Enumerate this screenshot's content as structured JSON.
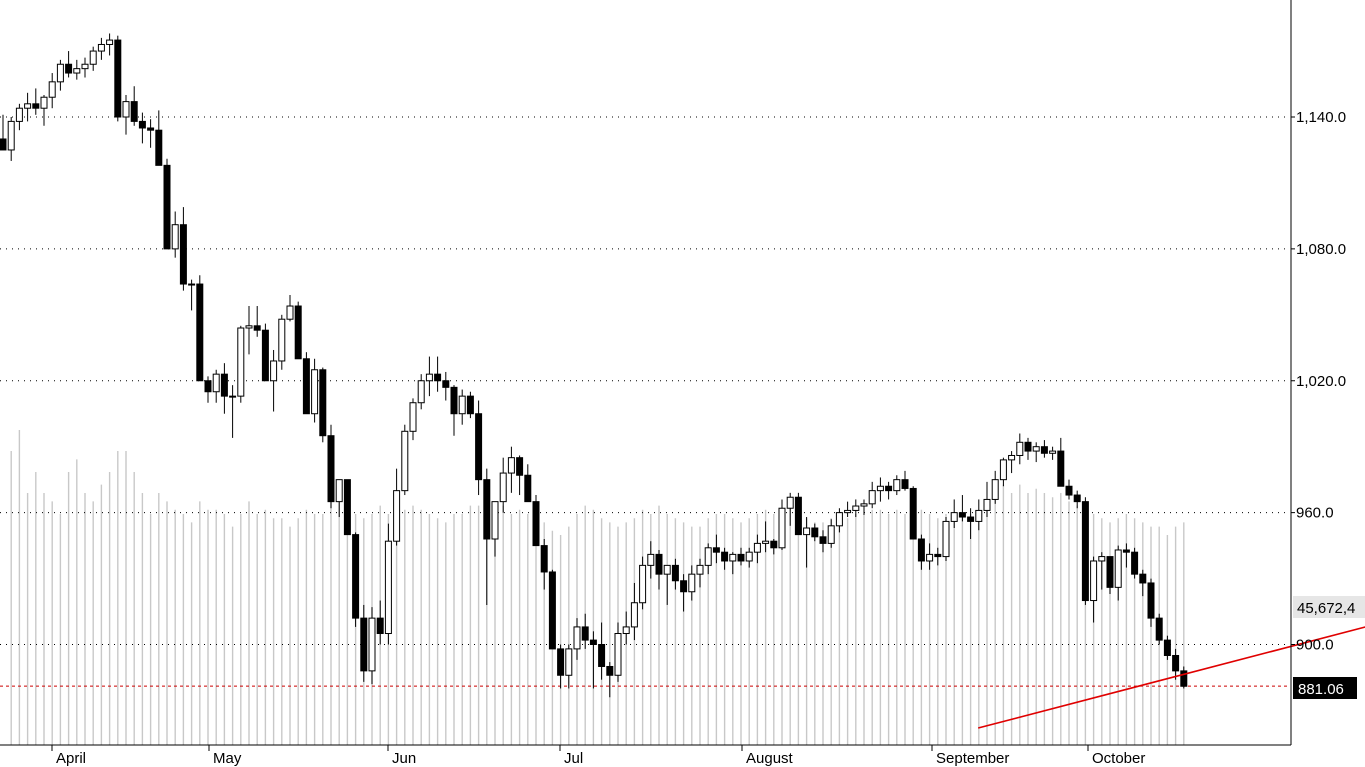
{
  "chart_data": {
    "type": "candlestick",
    "y_axis": {
      "ticks": [
        900,
        960,
        1020,
        1080,
        1140
      ],
      "tick_labels": [
        "900.0",
        "960.0",
        "1,020.0",
        "1,080.0",
        "1,140.0"
      ],
      "range": [
        848,
        1182
      ],
      "position": "right"
    },
    "x_axis": {
      "months": [
        "April",
        "May",
        "Jun",
        "Jul",
        "August",
        "September",
        "October"
      ]
    },
    "grid": {
      "horizontal": "dotted",
      "vertical": false
    },
    "current_price": {
      "label": "881.06",
      "value": 881.06,
      "line_color": "#cc0000"
    },
    "volume_label": "45,672,4",
    "trendline": {
      "color": "#e00000",
      "start": {
        "bar": 121,
        "value": 862
      },
      "end": {
        "bar": 251,
        "value": 990
      }
    },
    "bar_spacing_note": "daily bars",
    "candles": [
      [
        1130,
        1141,
        1125,
        1125,
        0
      ],
      [
        1125,
        1140,
        1120,
        1138,
        70
      ],
      [
        1138,
        1146,
        1134,
        1144,
        75
      ],
      [
        1144,
        1151,
        1138,
        1146,
        60
      ],
      [
        1146,
        1153,
        1141,
        1144,
        65
      ],
      [
        1144,
        1150,
        1136,
        1149,
        60
      ],
      [
        1149,
        1160,
        1144,
        1156,
        58
      ],
      [
        1156,
        1166,
        1152,
        1164,
        55
      ],
      [
        1164,
        1170,
        1158,
        1160,
        65
      ],
      [
        1160,
        1166,
        1157,
        1162,
        68
      ],
      [
        1162,
        1167,
        1158,
        1164,
        60
      ],
      [
        1164,
        1172,
        1161,
        1170,
        58
      ],
      [
        1170,
        1176,
        1166,
        1173,
        62
      ],
      [
        1173,
        1178,
        1168,
        1175,
        65
      ],
      [
        1175,
        1177,
        1138,
        1140,
        70
      ],
      [
        1140,
        1150,
        1132,
        1147,
        70
      ],
      [
        1147,
        1154,
        1136,
        1138,
        65
      ],
      [
        1138,
        1142,
        1128,
        1135,
        60
      ],
      [
        1135,
        1139,
        1126,
        1134,
        55
      ],
      [
        1134,
        1143,
        1118,
        1118,
        60
      ],
      [
        1118,
        1121,
        1080,
        1080,
        58
      ],
      [
        1080,
        1097,
        1076,
        1091,
        56
      ],
      [
        1091,
        1099,
        1061,
        1064,
        55
      ],
      [
        1064,
        1066,
        1052,
        1064,
        53
      ],
      [
        1064,
        1068,
        1020,
        1020,
        58
      ],
      [
        1020,
        1022,
        1010,
        1015,
        56
      ],
      [
        1015,
        1025,
        1010,
        1023,
        56
      ],
      [
        1023,
        1028,
        1005,
        1013,
        55
      ],
      [
        1013,
        1018,
        994,
        1013,
        52
      ],
      [
        1013,
        1045,
        1010,
        1044,
        55
      ],
      [
        1044,
        1054,
        1032,
        1045,
        58
      ],
      [
        1045,
        1054,
        1040,
        1043,
        55
      ],
      [
        1043,
        1046,
        1020,
        1020,
        56
      ],
      [
        1020,
        1034,
        1006,
        1029,
        54
      ],
      [
        1029,
        1050,
        1025,
        1048,
        54
      ],
      [
        1048,
        1059,
        1047,
        1054,
        52
      ],
      [
        1054,
        1056,
        1030,
        1030,
        54
      ],
      [
        1030,
        1033,
        1005,
        1005,
        56
      ],
      [
        1005,
        1030,
        1001,
        1025,
        55
      ],
      [
        1025,
        1026,
        992,
        995,
        55
      ],
      [
        995,
        1000,
        962,
        965,
        58
      ],
      [
        965,
        975,
        958,
        975,
        60
      ],
      [
        975,
        975,
        950,
        950,
        57
      ],
      [
        950,
        951,
        908,
        912,
        55
      ],
      [
        912,
        918,
        883,
        888,
        54
      ],
      [
        888,
        917,
        882,
        912,
        55
      ],
      [
        912,
        920,
        900,
        905,
        57
      ],
      [
        905,
        955,
        900,
        947,
        55
      ],
      [
        947,
        980,
        945,
        970,
        54
      ],
      [
        970,
        1000,
        968,
        997,
        56
      ],
      [
        997,
        1012,
        993,
        1010,
        57
      ],
      [
        1010,
        1023,
        1007,
        1020,
        56
      ],
      [
        1020,
        1031,
        1013,
        1023,
        55
      ],
      [
        1023,
        1031,
        1015,
        1020,
        54
      ],
      [
        1020,
        1024,
        1011,
        1017,
        53
      ],
      [
        1017,
        1018,
        995,
        1005,
        55
      ],
      [
        1005,
        1016,
        1000,
        1013,
        55
      ],
      [
        1013,
        1015,
        1003,
        1005,
        57
      ],
      [
        1005,
        1011,
        968,
        975,
        57
      ],
      [
        975,
        980,
        918,
        948,
        56
      ],
      [
        948,
        965,
        940,
        965,
        58
      ],
      [
        965,
        985,
        960,
        978,
        57
      ],
      [
        978,
        990,
        969,
        985,
        55
      ],
      [
        985,
        986,
        968,
        977,
        56
      ],
      [
        977,
        982,
        965,
        965,
        55
      ],
      [
        965,
        968,
        945,
        945,
        52
      ],
      [
        945,
        948,
        925,
        933,
        53
      ],
      [
        933,
        934,
        898,
        898,
        51
      ],
      [
        898,
        900,
        880,
        886,
        50
      ],
      [
        886,
        900,
        880,
        898,
        52
      ],
      [
        898,
        912,
        893,
        908,
        55
      ],
      [
        908,
        914,
        898,
        902,
        57
      ],
      [
        902,
        906,
        880,
        900,
        56
      ],
      [
        900,
        910,
        884,
        890,
        54
      ],
      [
        890,
        892,
        876,
        886,
        53
      ],
      [
        886,
        910,
        883,
        905,
        52
      ],
      [
        905,
        915,
        900,
        908,
        53
      ],
      [
        908,
        928,
        902,
        919,
        54
      ],
      [
        919,
        940,
        916,
        936,
        56
      ],
      [
        936,
        947,
        930,
        941,
        55
      ],
      [
        941,
        943,
        925,
        932,
        57
      ],
      [
        932,
        935,
        918,
        936,
        55
      ],
      [
        936,
        939,
        925,
        929,
        54
      ],
      [
        929,
        932,
        915,
        924,
        53
      ],
      [
        924,
        936,
        920,
        932,
        52
      ],
      [
        932,
        939,
        926,
        936,
        52
      ],
      [
        936,
        946,
        932,
        944,
        54
      ],
      [
        944,
        950,
        937,
        942,
        55
      ],
      [
        942,
        944,
        934,
        938,
        55
      ],
      [
        938,
        942,
        932,
        941,
        54
      ],
      [
        941,
        944,
        936,
        938,
        53
      ],
      [
        938,
        944,
        935,
        942,
        54
      ],
      [
        942,
        950,
        937,
        946,
        55
      ],
      [
        946,
        956,
        942,
        947,
        56
      ],
      [
        947,
        948,
        941,
        944,
        55
      ],
      [
        944,
        966,
        943,
        962,
        56
      ],
      [
        962,
        969,
        954,
        967,
        57
      ],
      [
        967,
        969,
        950,
        950,
        56
      ],
      [
        950,
        958,
        935,
        953,
        54
      ],
      [
        953,
        955,
        947,
        949,
        53
      ],
      [
        949,
        952,
        942,
        946,
        53
      ],
      [
        946,
        957,
        944,
        954,
        54
      ],
      [
        954,
        962,
        951,
        960,
        55
      ],
      [
        960,
        965,
        958,
        961,
        54
      ],
      [
        961,
        966,
        958,
        963,
        55
      ],
      [
        963,
        966,
        959,
        964,
        55
      ],
      [
        964,
        974,
        962,
        970,
        56
      ],
      [
        970,
        976,
        965,
        972,
        56
      ],
      [
        972,
        974,
        966,
        970,
        55
      ],
      [
        970,
        977,
        968,
        975,
        56
      ],
      [
        975,
        979,
        970,
        971,
        55
      ],
      [
        971,
        972,
        948,
        948,
        57
      ],
      [
        948,
        950,
        934,
        938,
        56
      ],
      [
        938,
        946,
        934,
        941,
        55
      ],
      [
        941,
        944,
        936,
        940,
        54
      ],
      [
        940,
        958,
        938,
        956,
        55
      ],
      [
        956,
        966,
        953,
        960,
        54
      ],
      [
        960,
        968,
        956,
        958,
        55
      ],
      [
        958,
        962,
        948,
        956,
        55
      ],
      [
        956,
        966,
        952,
        961,
        56
      ],
      [
        961,
        974,
        958,
        966,
        58
      ],
      [
        966,
        979,
        964,
        975,
        60
      ],
      [
        975,
        985,
        972,
        984,
        62
      ],
      [
        984,
        988,
        978,
        986,
        60
      ],
      [
        986,
        996,
        982,
        992,
        62
      ],
      [
        992,
        994,
        984,
        988,
        60
      ],
      [
        988,
        992,
        983,
        990,
        61
      ],
      [
        990,
        993,
        985,
        987,
        60
      ],
      [
        987,
        990,
        984,
        988,
        59
      ],
      [
        988,
        994,
        972,
        972,
        60
      ],
      [
        972,
        975,
        966,
        968,
        58
      ],
      [
        968,
        970,
        962,
        965,
        57
      ],
      [
        965,
        967,
        918,
        920,
        56
      ],
      [
        920,
        940,
        910,
        938,
        55
      ],
      [
        938,
        942,
        925,
        940,
        54
      ],
      [
        940,
        940,
        923,
        926,
        53
      ],
      [
        926,
        945,
        920,
        943,
        54
      ],
      [
        943,
        946,
        935,
        942,
        55
      ],
      [
        942,
        944,
        930,
        932,
        54
      ],
      [
        932,
        934,
        922,
        928,
        53
      ],
      [
        928,
        930,
        908,
        912,
        52
      ],
      [
        912,
        914,
        900,
        902,
        52
      ],
      [
        902,
        904,
        893,
        895,
        50
      ],
      [
        895,
        898,
        884,
        888,
        52
      ],
      [
        888,
        890,
        880,
        881,
        53
      ]
    ]
  }
}
